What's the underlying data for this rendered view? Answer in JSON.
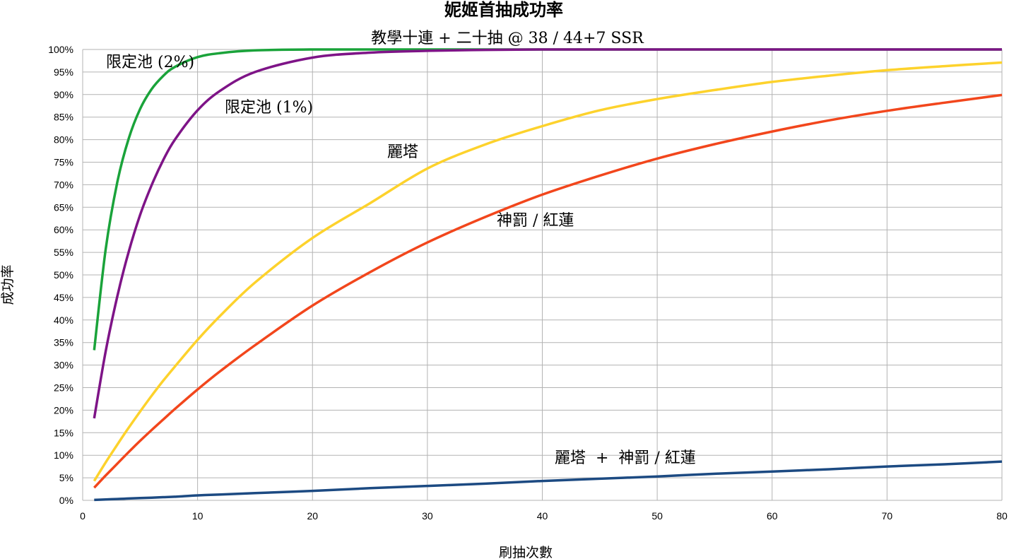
{
  "chart_data": {
    "type": "line",
    "title": "妮姬首抽成功率",
    "subtitle": "教學十連 + 二十抽  @ 38 / 44+7 SSR",
    "xlabel": "刷抽次數",
    "ylabel": "成功率",
    "xlim": [
      0,
      80
    ],
    "ylim": [
      0,
      100
    ],
    "x_ticks": [
      "0",
      "10",
      "20",
      "30",
      "40",
      "50",
      "60",
      "70",
      "80"
    ],
    "y_ticks": [
      "0%",
      "5%",
      "10%",
      "15%",
      "20%",
      "25%",
      "30%",
      "35%",
      "40%",
      "45%",
      "50%",
      "55%",
      "60%",
      "65%",
      "70%",
      "75%",
      "80%",
      "85%",
      "90%",
      "95%",
      "100%"
    ],
    "grid": true,
    "x": [
      1,
      2,
      3,
      4,
      5,
      6,
      7,
      8,
      10,
      12,
      15,
      20,
      25,
      30,
      35,
      40,
      45,
      50,
      55,
      60,
      65,
      70,
      75,
      80
    ],
    "series": [
      {
        "name": "限定池 (2%)",
        "color": "#1aa33a",
        "values": [
          33.3,
          55.6,
          70.4,
          80.2,
          86.8,
          91.2,
          94.1,
          96.1,
          98.3,
          99.2,
          99.8,
          100,
          100,
          100,
          100,
          100,
          100,
          100,
          100,
          100,
          100,
          100,
          100,
          100
        ]
      },
      {
        "name": "限定池 (1%)",
        "color": "#7e1487",
        "values": [
          18.2,
          33.0,
          45.1,
          55.1,
          63.3,
          69.9,
          75.4,
          79.9,
          86.5,
          90.9,
          95.0,
          98.2,
          99.3,
          99.7,
          99.9,
          100,
          100,
          100,
          100,
          100,
          100,
          100,
          100,
          100
        ]
      },
      {
        "name": "麗塔",
        "color": "#fdd22c",
        "values": [
          4.3,
          8.4,
          12.3,
          16.1,
          19.7,
          23.2,
          26.5,
          29.6,
          35.6,
          41.0,
          48.3,
          58.2,
          65.9,
          73.6,
          78.9,
          83.0,
          86.5,
          89.0,
          91.0,
          92.8,
          94.2,
          95.4,
          96.3,
          97.1
        ]
      },
      {
        "name": "神罰 / 紅蓮",
        "color": "#f2461c",
        "values": [
          2.8,
          5.5,
          8.1,
          10.7,
          13.2,
          15.6,
          17.9,
          20.2,
          24.6,
          28.7,
          34.4,
          43.2,
          50.6,
          57.2,
          62.8,
          67.8,
          72.0,
          75.8,
          79.0,
          81.8,
          84.3,
          86.4,
          88.2,
          89.9
        ]
      },
      {
        "name": "麗塔  +  神罰 / 紅蓮",
        "color": "#1c4a82",
        "values": [
          0.1,
          0.2,
          0.3,
          0.4,
          0.5,
          0.6,
          0.7,
          0.8,
          1.1,
          1.3,
          1.6,
          2.1,
          2.7,
          3.2,
          3.7,
          4.3,
          4.8,
          5.3,
          5.9,
          6.4,
          6.9,
          7.5,
          8.0,
          8.6
        ]
      }
    ]
  }
}
